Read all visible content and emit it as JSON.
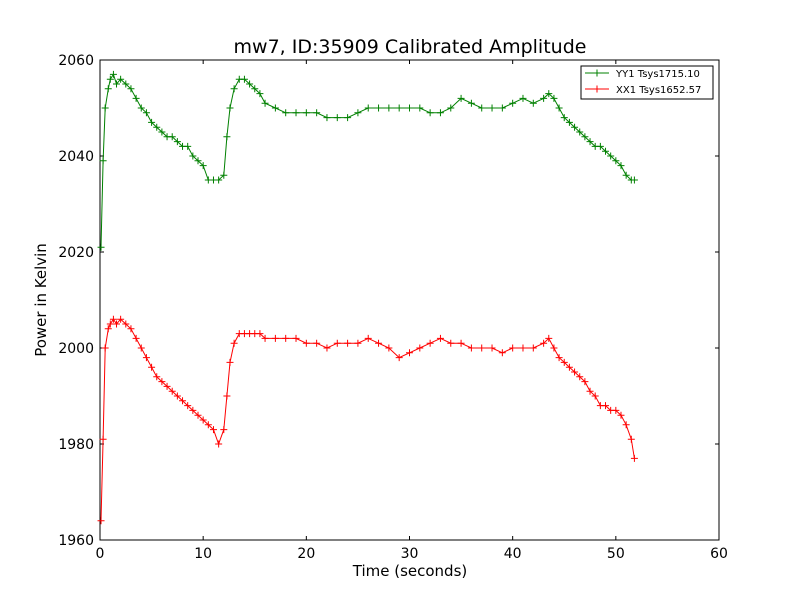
{
  "chart_data": {
    "type": "line",
    "title": "mw7, ID:35909 Calibrated Amplitude",
    "xlabel": "Time (seconds)",
    "ylabel": "Power in Kelvin",
    "xlim": [
      0,
      60
    ],
    "ylim": [
      1960,
      2060
    ],
    "xticks": [
      "0",
      "10",
      "20",
      "30",
      "40",
      "50",
      "60"
    ],
    "yticks": [
      "1960",
      "1980",
      "2000",
      "2020",
      "2040",
      "2060"
    ],
    "grid": false,
    "legend_position": "top-right",
    "series": [
      {
        "name": "YY1 Tsys1715.10",
        "color": "#008000",
        "marker": "plus",
        "x": [
          0.1,
          0.3,
          0.5,
          0.8,
          1.0,
          1.3,
          1.6,
          2.0,
          2.5,
          3.0,
          3.5,
          4.0,
          4.5,
          5.0,
          5.5,
          6.0,
          6.5,
          7.0,
          7.5,
          8.0,
          8.5,
          9.0,
          9.5,
          10.0,
          10.5,
          11.0,
          11.5,
          12.0,
          12.3,
          12.6,
          13.0,
          13.5,
          14.0,
          14.5,
          15.0,
          15.5,
          16.0,
          17.0,
          18.0,
          19.0,
          20.0,
          21.0,
          22.0,
          23.0,
          24.0,
          25.0,
          26.0,
          27.0,
          28.0,
          29.0,
          30.0,
          31.0,
          32.0,
          33.0,
          34.0,
          35.0,
          36.0,
          37.0,
          38.0,
          39.0,
          40.0,
          41.0,
          42.0,
          43.0,
          43.5,
          44.0,
          44.5,
          45.0,
          45.5,
          46.0,
          46.5,
          47.0,
          47.5,
          48.0,
          48.5,
          49.0,
          49.5,
          50.0,
          50.5,
          51.0,
          51.5,
          51.8
        ],
        "y": [
          2021,
          2039,
          2050,
          2054,
          2056,
          2057,
          2055,
          2056,
          2055,
          2054,
          2052,
          2050,
          2049,
          2047,
          2046,
          2045,
          2044,
          2044,
          2043,
          2042,
          2042,
          2040,
          2039,
          2038,
          2035,
          2035,
          2035,
          2036,
          2044,
          2050,
          2054,
          2056,
          2056,
          2055,
          2054,
          2053,
          2051,
          2050,
          2049,
          2049,
          2049,
          2049,
          2048,
          2048,
          2048,
          2049,
          2050,
          2050,
          2050,
          2050,
          2050,
          2050,
          2049,
          2049,
          2050,
          2052,
          2051,
          2050,
          2050,
          2050,
          2051,
          2052,
          2051,
          2052,
          2053,
          2052,
          2050,
          2048,
          2047,
          2046,
          2045,
          2044,
          2043,
          2042,
          2042,
          2041,
          2040,
          2039,
          2038,
          2036,
          2035,
          2035
        ]
      },
      {
        "name": "XX1 Tsys1652.57",
        "color": "#ff0000",
        "marker": "plus",
        "x": [
          0.1,
          0.3,
          0.5,
          0.8,
          1.0,
          1.3,
          1.6,
          2.0,
          2.5,
          3.0,
          3.5,
          4.0,
          4.5,
          5.0,
          5.5,
          6.0,
          6.5,
          7.0,
          7.5,
          8.0,
          8.5,
          9.0,
          9.5,
          10.0,
          10.5,
          11.0,
          11.5,
          12.0,
          12.3,
          12.6,
          13.0,
          13.5,
          14.0,
          14.5,
          15.0,
          15.5,
          16.0,
          17.0,
          18.0,
          19.0,
          20.0,
          21.0,
          22.0,
          23.0,
          24.0,
          25.0,
          26.0,
          27.0,
          28.0,
          29.0,
          30.0,
          31.0,
          32.0,
          33.0,
          34.0,
          35.0,
          36.0,
          37.0,
          38.0,
          39.0,
          40.0,
          41.0,
          42.0,
          43.0,
          43.5,
          44.0,
          44.5,
          45.0,
          45.5,
          46.0,
          46.5,
          47.0,
          47.5,
          48.0,
          48.5,
          49.0,
          49.5,
          50.0,
          50.5,
          51.0,
          51.5,
          51.8
        ],
        "y": [
          1964,
          1981,
          2000,
          2004,
          2005,
          2006,
          2005,
          2006,
          2005,
          2004,
          2002,
          2000,
          1998,
          1996,
          1994,
          1993,
          1992,
          1991,
          1990,
          1989,
          1988,
          1987,
          1986,
          1985,
          1984,
          1983,
          1980,
          1983,
          1990,
          1997,
          2001,
          2003,
          2003,
          2003,
          2003,
          2003,
          2002,
          2002,
          2002,
          2002,
          2001,
          2001,
          2000,
          2001,
          2001,
          2001,
          2002,
          2001,
          2000,
          1998,
          1999,
          2000,
          2001,
          2002,
          2001,
          2001,
          2000,
          2000,
          2000,
          1999,
          2000,
          2000,
          2000,
          2001,
          2002,
          2000,
          1998,
          1997,
          1996,
          1995,
          1994,
          1993,
          1991,
          1990,
          1988,
          1988,
          1987,
          1987,
          1986,
          1984,
          1981,
          1977
        ]
      }
    ]
  }
}
